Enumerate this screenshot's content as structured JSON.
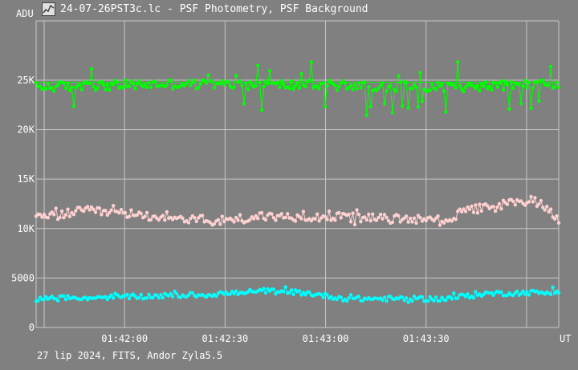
{
  "window": {
    "title": "24-07-26PST3c.lc - PSF Photometry, PSF Background",
    "icon": "chart-window-icon"
  },
  "footer": {
    "info": "27 lip 2024, FITS, Andor Zyla5.5"
  },
  "colors": {
    "background": "#808080",
    "grid": "#c8c8c8",
    "axis": "#ffffff",
    "series_green": "#00ff00",
    "series_pink": "#ffd0d0",
    "series_cyan": "#00ffff"
  },
  "chart_data": {
    "type": "line",
    "ylabel": "ADU",
    "xlabel": "UT",
    "ylim": [
      0,
      31000
    ],
    "xlim_seconds": [
      68,
      198
    ],
    "yticks": [
      {
        "value": 0,
        "label": "0"
      },
      {
        "value": 5000,
        "label": "5000"
      },
      {
        "value": 10000,
        "label": "10K"
      },
      {
        "value": 15000,
        "label": "15K"
      },
      {
        "value": 20000,
        "label": "20K"
      },
      {
        "value": 25000,
        "label": "25K"
      }
    ],
    "xticks": [
      {
        "seconds": 70,
        "label": ""
      },
      {
        "seconds": 90,
        "label": "01:42:00"
      },
      {
        "seconds": 115,
        "label": "01:42:30"
      },
      {
        "seconds": 140,
        "label": "01:43:00"
      },
      {
        "seconds": 165,
        "label": "01:43:30"
      },
      {
        "seconds": 190,
        "label": ""
      }
    ],
    "grid": true,
    "series": [
      {
        "color": "#00ff00",
        "baseline": 24800,
        "trend": [
          [
            68,
            24300
          ],
          [
            100,
            24600
          ],
          [
            140,
            24500
          ],
          [
            170,
            24300
          ],
          [
            198,
            24600
          ]
        ],
        "noise": 1000,
        "spike_up": 2500,
        "spike_down": 2800,
        "spike_rate": 0.1
      },
      {
        "color": "#ffd0d0",
        "trend": [
          [
            68,
            11000
          ],
          [
            80,
            11800
          ],
          [
            90,
            11500
          ],
          [
            105,
            11000
          ],
          [
            112,
            10800
          ],
          [
            125,
            11200
          ],
          [
            140,
            11200
          ],
          [
            155,
            11000
          ],
          [
            170,
            10900
          ],
          [
            175,
            11800
          ],
          [
            185,
            12500
          ],
          [
            192,
            12800
          ],
          [
            198,
            11000
          ]
        ],
        "noise": 900,
        "spike_up": 600,
        "spike_down": 600,
        "spike_rate": 0.1
      },
      {
        "color": "#00ffff",
        "trend": [
          [
            68,
            2900
          ],
          [
            80,
            3000
          ],
          [
            90,
            3100
          ],
          [
            110,
            3300
          ],
          [
            118,
            3500
          ],
          [
            125,
            3700
          ],
          [
            135,
            3500
          ],
          [
            145,
            2900
          ],
          [
            160,
            2900
          ],
          [
            170,
            2900
          ],
          [
            178,
            3400
          ],
          [
            198,
            3600
          ]
        ],
        "noise": 500,
        "spike_up": 300,
        "spike_down": 300,
        "spike_rate": 0.08
      }
    ],
    "points_per_series": 265
  }
}
